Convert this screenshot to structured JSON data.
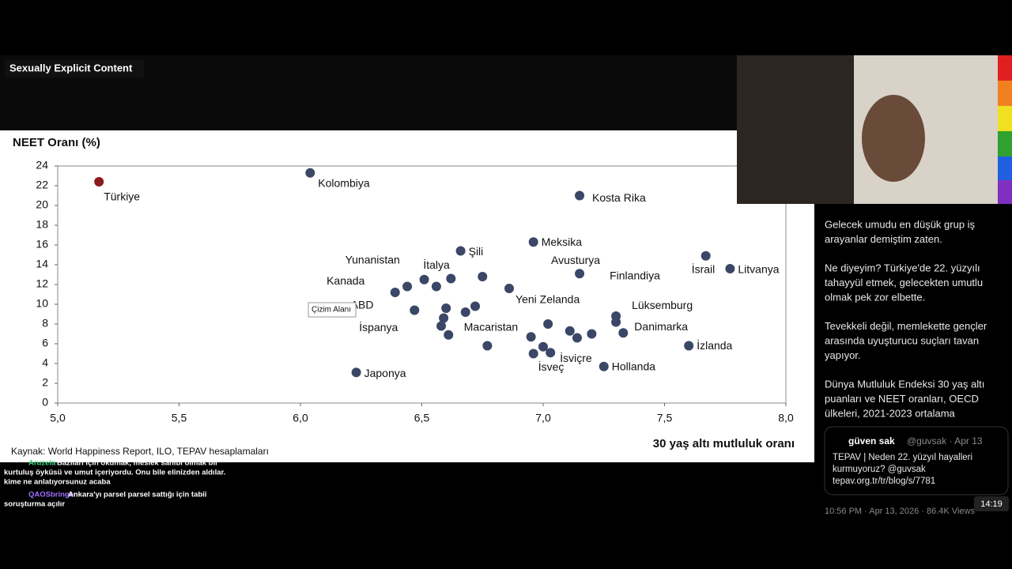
{
  "overlay_label": "Sexually Explicit Content",
  "chart_data": {
    "type": "scatter",
    "y_label": "NEET Oranı (%)",
    "x_label": "30 yaş altı mutluluk oranı",
    "source": "Kaynak: World Happiness Report, ILO, TEPAV hesaplamaları",
    "tooltip": "Çizim Alanı",
    "xlim": [
      5,
      8
    ],
    "ylim": [
      0,
      24
    ],
    "xticks": [
      {
        "value": 5,
        "label": "5,0"
      },
      {
        "value": 5.5,
        "label": "5,5"
      },
      {
        "value": 6,
        "label": "6,0"
      },
      {
        "value": 6.5,
        "label": "6,5"
      },
      {
        "value": 7,
        "label": "7,0"
      },
      {
        "value": 7.5,
        "label": "7,5"
      },
      {
        "value": 8,
        "label": "8,0"
      }
    ],
    "yticks": [
      0,
      2,
      4,
      6,
      8,
      10,
      12,
      14,
      16,
      18,
      20,
      22,
      24
    ],
    "series": [
      {
        "color": "#3a4766",
        "highlight_color": "#8e1b1b",
        "labels": [
          "Türkiye",
          "Kolombiya",
          "Kosta Rika",
          "Meksika",
          "Şili",
          "İsrail",
          "Litvanya",
          "Avusturya",
          null,
          "İtalya",
          "Yunanistan",
          "Kanada",
          null,
          "Yeni Zelanda",
          "ABD",
          null,
          null,
          "Macaristan",
          "İspanya",
          null,
          null,
          null,
          "Finlandiya",
          "Lüksemburg",
          null,
          null,
          null,
          null,
          "Danimarka",
          null,
          null,
          null,
          "İsviçre",
          "İsveç",
          "İzlanda",
          "Hollanda",
          "Japonya"
        ],
        "x": [
          5.17,
          6.04,
          7.15,
          6.96,
          6.66,
          7.67,
          7.77,
          7.15,
          6.75,
          6.62,
          6.51,
          6.44,
          6.56,
          6.86,
          6.39,
          6.6,
          6.72,
          6.68,
          6.47,
          6.59,
          6.58,
          6.61,
          7.3,
          7.3,
          7.02,
          7.11,
          7.14,
          7.2,
          7.33,
          6.95,
          6.77,
          7.0,
          7.03,
          6.96,
          7.6,
          7.25,
          6.23
        ],
        "values": [
          22.4,
          23.3,
          21.0,
          16.3,
          15.4,
          14.9,
          13.6,
          13.1,
          12.8,
          12.6,
          12.5,
          11.8,
          11.8,
          11.6,
          11.2,
          9.6,
          9.8,
          9.2,
          9.4,
          8.6,
          7.8,
          6.9,
          8.8,
          8.2,
          8.0,
          7.3,
          6.6,
          7.0,
          7.1,
          6.7,
          5.8,
          5.7,
          5.1,
          5.0,
          5.8,
          3.7,
          3.1
        ]
      }
    ]
  },
  "sidebar": {
    "paragraphs": [
      [
        "Gelecek umudu en düşük grup iş",
        "arayanlar demiştim zaten."
      ],
      [
        "Ne diyeyim? Türkiye'de  22. yüzyılı",
        "tahayyül etmek, gelecekten umutlu",
        "olmak pek zor elbette."
      ],
      [
        "Tevekkeli değil, memlekette  gençler",
        "arasında uyuşturucu suçları tavan",
        "yapıyor."
      ],
      [
        "Dünya Mutluluk Endeksi 30 yaş altı",
        "puanları ve NEET oranları, OECD",
        "ülkeleri, 2021-2023 ortalama"
      ]
    ],
    "quote": {
      "name": "güven sak",
      "handle": "@guvsak · Apr 13",
      "lines": [
        "TEPAV | Neden 22. yüzyıl hayalleri",
        "kurmuyoruz? @guvsak",
        "tepav.org.tr/tr/blog/s/7781"
      ]
    },
    "meta": "10:56 PM · Apr 13, 2026 · 86.4K Views"
  },
  "timer": "14:19",
  "chat": [
    {
      "user": "Aruzela",
      "lines": [
        "Bazıları için okumak, meslek sahibi olmak bir",
        "kurtuluş öyküsü ve umut içeriyordu. Onu bile elinizden aldılar.",
        "kime ne anlatıyorsunuz acaba"
      ]
    },
    {
      "user": "QAOSbringer",
      "lines": [
        "Ankara'yı parsel parsel sattığı için tabii",
        "soruşturma açılır"
      ]
    }
  ]
}
